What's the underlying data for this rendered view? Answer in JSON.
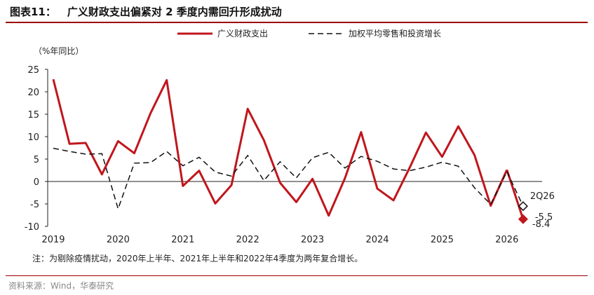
{
  "header": {
    "figure_label": "图表11：",
    "title": "广义财政支出偏紧对 2 季度内需回升形成扰动"
  },
  "source": "资料来源：Wind，华泰研究",
  "colors": {
    "fiscal": "#c0161d",
    "retail": "#111111",
    "rule": "#9a0000"
  },
  "chart_data": {
    "type": "line",
    "ylabel": "（%年同比）",
    "ylim": [
      -10,
      25
    ],
    "yticks": [
      "25",
      "20",
      "15",
      "10",
      "5",
      "0",
      "-5",
      "-10"
    ],
    "xticks": [
      "2019",
      "2020",
      "2021",
      "2022",
      "2023",
      "2024",
      "2025",
      "2026"
    ],
    "x_start": "2019Q1",
    "note": "注：为剔除疫情扰动，2020年上半年、2021年上半年和2022年4季度为两年复合增长。",
    "series": [
      {
        "name": "广义财政支出",
        "style": "solid",
        "values": [
          22.8,
          8.4,
          8.6,
          1.6,
          9.0,
          6.3,
          15.2,
          22.6,
          -1.0,
          2.4,
          -4.9,
          -0.8,
          16.2,
          9.2,
          -0.3,
          -4.6,
          0.6,
          -7.6,
          0.7,
          11.0,
          -1.6,
          -4.2,
          3.1,
          10.9,
          5.5,
          12.3,
          5.9,
          -5.4,
          2.6
        ]
      },
      {
        "name": "加权平均零售和投资增长",
        "style": "dashed",
        "values": [
          7.4,
          6.7,
          6.1,
          6.2,
          -6.1,
          4.1,
          4.2,
          6.7,
          3.5,
          5.4,
          2.1,
          1.2,
          5.8,
          0.2,
          4.4,
          0.8,
          5.3,
          6.5,
          3.0,
          5.6,
          4.5,
          2.8,
          2.4,
          3.2,
          4.3,
          3.4,
          -1.4,
          -5.1,
          2.2
        ]
      }
    ],
    "forecast": {
      "label": "2Q26",
      "points": [
        {
          "series": "广义财政支出",
          "value": -8.4,
          "label": "-8.4",
          "marker": "filled-diamond"
        },
        {
          "series": "加权平均零售和投资增长",
          "value": -5.5,
          "label": "-5.5",
          "marker": "hollow-diamond"
        }
      ]
    },
    "legend": {
      "placement": "top"
    },
    "grid": false
  }
}
